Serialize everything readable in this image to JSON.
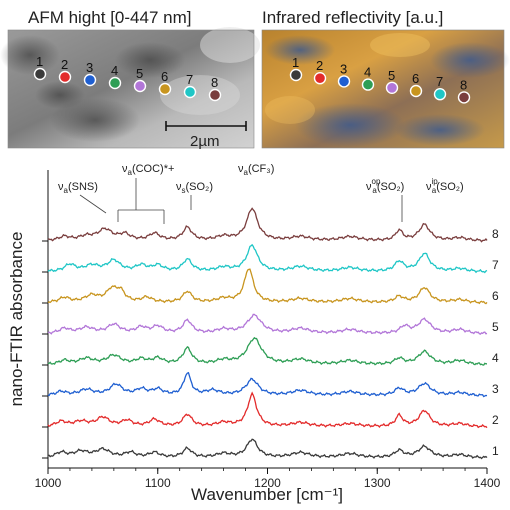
{
  "panels": {
    "afm": {
      "title": "AFM hight [0-447 nm]",
      "scalebar": "2µm"
    },
    "ir": {
      "title": "Infrared reflectivity [a.u.]"
    }
  },
  "markers": [
    {
      "label": "1",
      "color": "#3a3a3a"
    },
    {
      "label": "2",
      "color": "#e32b2b"
    },
    {
      "label": "3",
      "color": "#1f5fd1"
    },
    {
      "label": "4",
      "color": "#2e9e55"
    },
    {
      "label": "5",
      "color": "#b276d8"
    },
    {
      "label": "6",
      "color": "#c8951f"
    },
    {
      "label": "7",
      "color": "#1fc6c6"
    },
    {
      "label": "8",
      "color": "#7a3e3e"
    }
  ],
  "annotations": [
    {
      "base": "ν",
      "sub": "a",
      "sup": "",
      "rest": "(SNS)"
    },
    {
      "base": "ν",
      "sub": "a",
      "sup": "",
      "rest": "(COC)*+"
    },
    {
      "base": "ν",
      "sub": "s",
      "sup": "",
      "rest": "(SO₂)"
    },
    {
      "base": "ν",
      "sub": "a",
      "sup": "",
      "rest": "(CF₃)"
    },
    {
      "base": "ν",
      "sub": "a",
      "sup": "op",
      "rest": "(SO₂)"
    },
    {
      "base": "ν",
      "sub": "a",
      "sup": "ip",
      "rest": "(SO₂)"
    }
  ],
  "chart_data": {
    "type": "line",
    "xlabel": "Wavenumber [cm⁻¹]",
    "ylabel": "nano-FTIR absorbance",
    "xlim": [
      1000,
      1400
    ],
    "xticks": [
      1000,
      1100,
      1200,
      1300,
      1400
    ],
    "grid": false,
    "series": [
      {
        "name": "1",
        "color": "#3a3a3a",
        "offset": 0,
        "peaks": [
          [
            1012,
            0.25,
            6
          ],
          [
            1030,
            0.3,
            8
          ],
          [
            1050,
            0.4,
            8
          ],
          [
            1075,
            0.25,
            6
          ],
          [
            1097,
            0.25,
            6
          ],
          [
            1127,
            0.45,
            5
          ],
          [
            1160,
            0.2,
            8
          ],
          [
            1186,
            0.9,
            6
          ],
          [
            1230,
            0.25,
            10
          ],
          [
            1275,
            0.2,
            10
          ],
          [
            1320,
            0.35,
            5
          ],
          [
            1343,
            0.55,
            7
          ],
          [
            1375,
            0.15,
            8
          ]
        ]
      },
      {
        "name": "2",
        "color": "#e32b2b",
        "offset": 1,
        "peaks": [
          [
            1012,
            0.25,
            6
          ],
          [
            1030,
            0.25,
            8
          ],
          [
            1050,
            0.45,
            7
          ],
          [
            1072,
            0.3,
            6
          ],
          [
            1097,
            0.35,
            6
          ],
          [
            1127,
            0.6,
            5
          ],
          [
            1160,
            0.2,
            8
          ],
          [
            1186,
            1.6,
            5
          ],
          [
            1230,
            0.2,
            10
          ],
          [
            1275,
            0.15,
            10
          ],
          [
            1320,
            0.55,
            4
          ],
          [
            1343,
            0.8,
            6
          ],
          [
            1375,
            0.15,
            8
          ]
        ]
      },
      {
        "name": "3",
        "color": "#1f5fd1",
        "offset": 2,
        "peaks": [
          [
            1012,
            0.2,
            6
          ],
          [
            1035,
            0.3,
            8
          ],
          [
            1062,
            0.55,
            7
          ],
          [
            1085,
            0.3,
            6
          ],
          [
            1100,
            0.3,
            6
          ],
          [
            1127,
            1.1,
            4
          ],
          [
            1150,
            0.25,
            8
          ],
          [
            1186,
            0.8,
            7
          ],
          [
            1230,
            0.25,
            10
          ],
          [
            1275,
            0.2,
            10
          ],
          [
            1320,
            0.35,
            5
          ],
          [
            1343,
            0.6,
            7
          ],
          [
            1375,
            0.15,
            8
          ]
        ]
      },
      {
        "name": "4",
        "color": "#2e9e55",
        "offset": 3,
        "peaks": [
          [
            1015,
            0.2,
            6
          ],
          [
            1035,
            0.3,
            8
          ],
          [
            1060,
            0.45,
            8
          ],
          [
            1085,
            0.25,
            6
          ],
          [
            1100,
            0.3,
            6
          ],
          [
            1127,
            0.8,
            5
          ],
          [
            1160,
            0.2,
            8
          ],
          [
            1188,
            1.3,
            8
          ],
          [
            1230,
            0.25,
            10
          ],
          [
            1275,
            0.2,
            10
          ],
          [
            1320,
            0.3,
            5
          ],
          [
            1343,
            0.65,
            7
          ],
          [
            1375,
            0.2,
            8
          ]
        ]
      },
      {
        "name": "5",
        "color": "#b276d8",
        "offset": 4,
        "peaks": [
          [
            1015,
            0.25,
            6
          ],
          [
            1035,
            0.3,
            8
          ],
          [
            1060,
            0.45,
            7
          ],
          [
            1085,
            0.3,
            6
          ],
          [
            1100,
            0.35,
            6
          ],
          [
            1127,
            0.65,
            5
          ],
          [
            1160,
            0.2,
            8
          ],
          [
            1188,
            0.9,
            8
          ],
          [
            1230,
            0.25,
            10
          ],
          [
            1275,
            0.2,
            10
          ],
          [
            1325,
            0.35,
            5
          ],
          [
            1343,
            0.7,
            7
          ],
          [
            1375,
            0.2,
            8
          ]
        ]
      },
      {
        "name": "6",
        "color": "#c8951f",
        "offset": 5,
        "peaks": [
          [
            1015,
            0.25,
            6
          ],
          [
            1040,
            0.35,
            8
          ],
          [
            1058,
            0.6,
            6
          ],
          [
            1066,
            0.5,
            5
          ],
          [
            1090,
            0.25,
            6
          ],
          [
            1127,
            0.55,
            5
          ],
          [
            1160,
            0.2,
            8
          ],
          [
            1183,
            1.7,
            5
          ],
          [
            1230,
            0.2,
            10
          ],
          [
            1275,
            0.2,
            10
          ],
          [
            1320,
            0.3,
            5
          ],
          [
            1343,
            0.75,
            6
          ],
          [
            1375,
            0.15,
            8
          ]
        ]
      },
      {
        "name": "7",
        "color": "#1fc6c6",
        "offset": 6,
        "peaks": [
          [
            1020,
            0.35,
            6
          ],
          [
            1040,
            0.3,
            8
          ],
          [
            1060,
            0.55,
            7
          ],
          [
            1085,
            0.3,
            6
          ],
          [
            1100,
            0.3,
            6
          ],
          [
            1127,
            0.6,
            5
          ],
          [
            1160,
            0.2,
            8
          ],
          [
            1186,
            1.3,
            6
          ],
          [
            1230,
            0.25,
            10
          ],
          [
            1275,
            0.2,
            10
          ],
          [
            1320,
            0.5,
            5
          ],
          [
            1343,
            0.9,
            6
          ],
          [
            1375,
            0.15,
            8
          ]
        ]
      },
      {
        "name": "8",
        "color": "#7a3e3e",
        "offset": 7,
        "peaks": [
          [
            1015,
            0.2,
            6
          ],
          [
            1035,
            0.2,
            8
          ],
          [
            1052,
            0.55,
            8
          ],
          [
            1070,
            0.3,
            6
          ],
          [
            1097,
            0.35,
            6
          ],
          [
            1127,
            0.65,
            5
          ],
          [
            1160,
            0.2,
            8
          ],
          [
            1186,
            1.6,
            6
          ],
          [
            1230,
            0.2,
            10
          ],
          [
            1275,
            0.2,
            10
          ],
          [
            1320,
            0.5,
            4
          ],
          [
            1343,
            0.8,
            6
          ],
          [
            1375,
            0.15,
            8
          ]
        ]
      }
    ]
  }
}
